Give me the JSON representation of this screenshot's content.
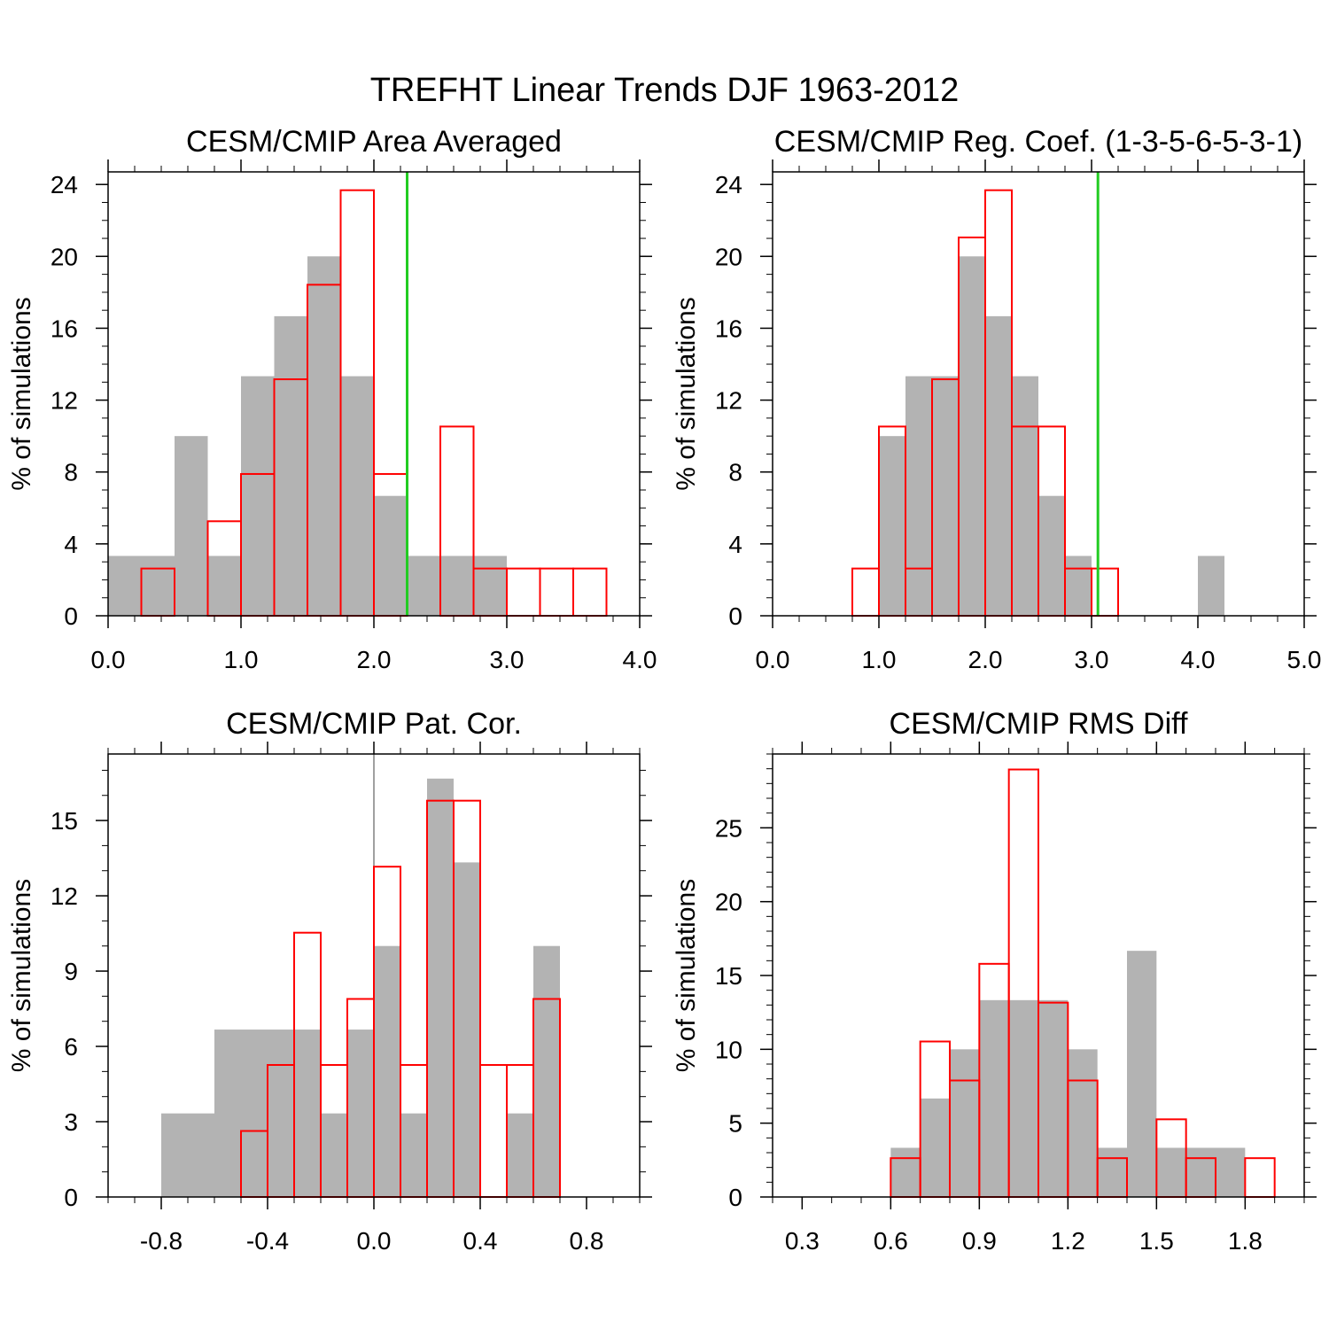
{
  "title": "TREFHT Linear Trends DJF 1963-2012",
  "colors": {
    "cesm_fill": "#b3b3b3",
    "cmip_outline": "#ff0000",
    "obs_line": "#22cc22",
    "zero_line": "#808080"
  },
  "chart_data": [
    {
      "type": "bar",
      "title": "CESM/CMIP Area Averaged",
      "ylabel": "% of simulations",
      "xlim": [
        0,
        4
      ],
      "ylim": [
        0,
        24.7
      ],
      "xticks": [
        0,
        1,
        2,
        3,
        4
      ],
      "xtick_labels": [
        "0.0",
        "1.0",
        "2.0",
        "3.0",
        "4.0"
      ],
      "xminor": 0.2,
      "yticks": [
        0,
        4,
        8,
        12,
        16,
        20,
        24
      ],
      "ytick_labels": [
        "0",
        "4",
        "8",
        "12",
        "16",
        "20",
        "24"
      ],
      "yminor": 1,
      "bin_edges": [
        0,
        0.25,
        0.5,
        0.75,
        1.0,
        1.25,
        1.5,
        1.75,
        2.0,
        2.25,
        2.5,
        2.75,
        3.0,
        3.25,
        3.5,
        3.75,
        4.0
      ],
      "series": [
        {
          "name": "CESM",
          "style": "filled",
          "values": [
            3.33,
            3.33,
            10,
            3.33,
            13.33,
            16.67,
            20,
            13.33,
            6.67,
            3.33,
            3.33,
            3.33,
            0,
            0,
            0,
            0
          ]
        },
        {
          "name": "CMIP",
          "style": "outline",
          "values": [
            0,
            2.63,
            0,
            5.26,
            7.89,
            13.16,
            18.42,
            23.68,
            7.89,
            0,
            10.53,
            2.63,
            2.63,
            2.63,
            2.63,
            0
          ]
        }
      ],
      "obs_line": 2.25
    },
    {
      "type": "bar",
      "title": "CESM/CMIP Reg. Coef. (1-3-5-6-5-3-1)",
      "ylabel": "% of simulations",
      "xlim": [
        0,
        5
      ],
      "ylim": [
        0,
        24.7
      ],
      "xticks": [
        0,
        1,
        2,
        3,
        4,
        5
      ],
      "xtick_labels": [
        "0.0",
        "1.0",
        "2.0",
        "3.0",
        "4.0",
        "5.0"
      ],
      "xminor": 0.25,
      "yticks": [
        0,
        4,
        8,
        12,
        16,
        20,
        24
      ],
      "ytick_labels": [
        "0",
        "4",
        "8",
        "12",
        "16",
        "20",
        "24"
      ],
      "yminor": 1,
      "bin_edges": [
        0.75,
        1.0,
        1.25,
        1.5,
        1.75,
        2.0,
        2.25,
        2.5,
        2.75,
        3.0,
        3.25,
        3.5,
        3.75,
        4.0,
        4.25
      ],
      "series": [
        {
          "name": "CESM",
          "style": "filled",
          "values": [
            0,
            10,
            13.33,
            13.33,
            20,
            16.67,
            13.33,
            6.67,
            3.33,
            0,
            0,
            0,
            0,
            3.33
          ]
        },
        {
          "name": "CMIP",
          "style": "outline",
          "values": [
            2.63,
            10.53,
            2.63,
            13.16,
            21.05,
            23.68,
            10.53,
            10.53,
            2.63,
            2.63,
            0,
            0,
            0,
            0
          ]
        }
      ],
      "obs_line": 3.06
    },
    {
      "type": "bar",
      "title": "CESM/CMIP Pat. Cor.",
      "ylabel": "% of simulations",
      "xlim": [
        -1,
        1
      ],
      "ylim": [
        0,
        17.65
      ],
      "xticks": [
        -0.8,
        -0.4,
        0,
        0.4,
        0.8
      ],
      "xtick_labels": [
        "-0.8",
        "-0.4",
        "0.0",
        "0.4",
        "0.8"
      ],
      "xminor": 0.1,
      "yticks": [
        0,
        3,
        6,
        9,
        12,
        15
      ],
      "ytick_labels": [
        "0",
        "3",
        "6",
        "9",
        "12",
        "15"
      ],
      "yminor": 1,
      "bin_edges": [
        -0.8,
        -0.7,
        -0.6,
        -0.5,
        -0.4,
        -0.3,
        -0.2,
        -0.1,
        0,
        0.1,
        0.2,
        0.3,
        0.4,
        0.5,
        0.6,
        0.7
      ],
      "series": [
        {
          "name": "CESM",
          "style": "filled",
          "values": [
            3.33,
            3.33,
            6.67,
            6.67,
            6.67,
            6.67,
            3.33,
            6.67,
            10,
            3.33,
            16.67,
            13.33,
            0,
            3.33,
            10
          ]
        },
        {
          "name": "CMIP",
          "style": "outline",
          "values": [
            0,
            0,
            0,
            2.63,
            5.26,
            10.53,
            5.26,
            7.89,
            13.16,
            5.26,
            15.79,
            15.79,
            5.26,
            5.26,
            7.89
          ]
        }
      ],
      "zero_line": 0
    },
    {
      "type": "bar",
      "title": "CESM/CMIP RMS Diff",
      "ylabel": "% of simulations",
      "xlim": [
        0.2,
        2.0
      ],
      "ylim": [
        0,
        30
      ],
      "xticks": [
        0.3,
        0.6,
        0.9,
        1.2,
        1.5,
        1.8
      ],
      "xtick_labels": [
        "0.3",
        "0.6",
        "0.9",
        "1.2",
        "1.5",
        "1.8"
      ],
      "xminor": 0.1,
      "yticks": [
        0,
        5,
        10,
        15,
        20,
        25
      ],
      "ytick_labels": [
        "0",
        "5",
        "10",
        "15",
        "20",
        "25"
      ],
      "yminor": 1,
      "bin_edges": [
        0.6,
        0.7,
        0.8,
        0.9,
        1.0,
        1.1,
        1.2,
        1.3,
        1.4,
        1.5,
        1.6,
        1.7,
        1.8,
        1.9
      ],
      "series": [
        {
          "name": "CESM",
          "style": "filled",
          "values": [
            3.33,
            6.67,
            10,
            13.33,
            13.33,
            13.33,
            10,
            3.33,
            16.67,
            3.33,
            3.33,
            3.33,
            0
          ]
        },
        {
          "name": "CMIP",
          "style": "outline",
          "values": [
            2.63,
            10.53,
            7.89,
            15.79,
            28.95,
            13.16,
            7.89,
            2.63,
            0,
            5.26,
            2.63,
            0,
            2.63
          ]
        }
      ]
    }
  ]
}
